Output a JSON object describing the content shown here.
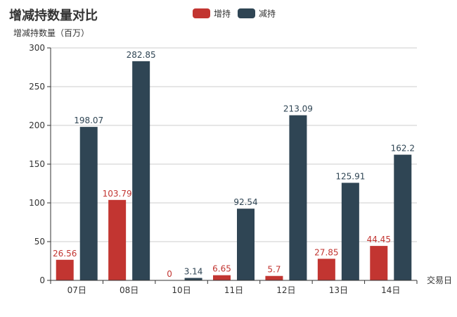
{
  "chart_data": {
    "type": "bar",
    "title": "增减持数量对比",
    "ylabel": "增减持数量（百万）",
    "xlabel": "交易日",
    "categories": [
      "07日",
      "08日",
      "10日",
      "11日",
      "12日",
      "13日",
      "14日"
    ],
    "ylim": [
      0,
      300
    ],
    "yticks": [
      0,
      50,
      100,
      150,
      200,
      250,
      300
    ],
    "grid": true,
    "legend_position": "top-center",
    "series": [
      {
        "name": "增持",
        "color": "#c23531",
        "values": [
          26.56,
          103.79,
          0,
          6.65,
          5.7,
          27.85,
          44.45
        ]
      },
      {
        "name": "减持",
        "color": "#2f4554",
        "values": [
          198.07,
          282.85,
          3.14,
          92.54,
          213.09,
          125.91,
          162.2
        ]
      }
    ]
  }
}
